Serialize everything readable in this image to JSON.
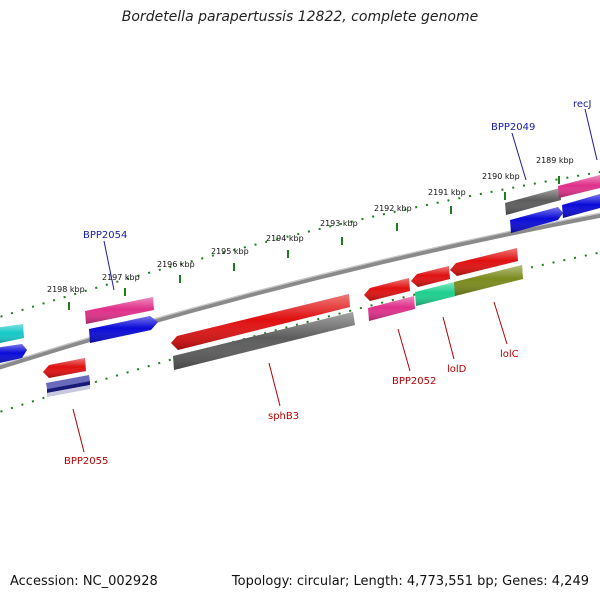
{
  "title": "Bordetella parapertussis 12822, complete genome",
  "footer": {
    "accession": "Accession: NC_002928",
    "summary": "Topology: circular; Length: 4,773,551 bp; Genes: 4,249"
  },
  "colors": {
    "backbone": "#8a8a8a",
    "ticks": "#1e7d1e",
    "red": "#e01010",
    "gray": "#5c5c5c",
    "pink": "#e0308a",
    "blue": "#0a0ad8",
    "cyan": "#16c8c8",
    "green": "#1ecf8f",
    "olive": "#7a8a1c",
    "navy": "#1a1a7a",
    "blue_label": "#1a1aa6",
    "red_label": "#b30000"
  },
  "scale_labels": [
    "2198 kbp",
    "2197 kbp",
    "2196 kbp",
    "2195 kbp",
    "2194 kbp",
    "2193 kbp",
    "2192 kbp",
    "2191 kbp",
    "2190 kbp",
    "2189 kbp"
  ],
  "gene_labels": {
    "forward": [
      "BPP2054",
      "BPP2049",
      "recJ"
    ],
    "reverse": [
      "BPP2055",
      "sphB3",
      "BPP2052",
      "lolD",
      "lolC"
    ]
  }
}
